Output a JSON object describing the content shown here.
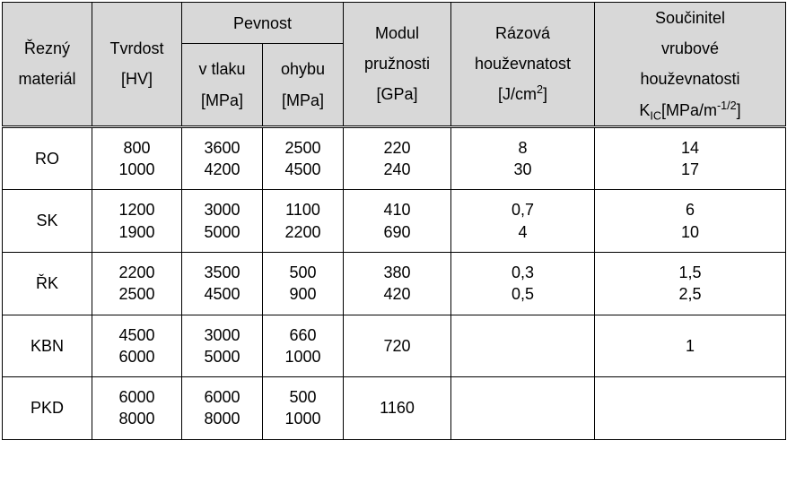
{
  "header": {
    "material": "Řezný materiál",
    "hardness": "Tvrdost [HV]",
    "pevnost": "Pevnost",
    "pevnost_tlak": "v tlaku [MPa]",
    "pevnost_ohyb": "ohybu [MPa]",
    "modul": "Modul pružnosti [GPa]",
    "raz_line1": "Rázová",
    "raz_line2": "houževnatost",
    "raz_unit_pre": "[J/cm",
    "raz_unit_sup": "2",
    "raz_unit_post": "]",
    "souc_line1": "Součinitel",
    "souc_line2": "vrubové",
    "souc_line3": "houževnatosti",
    "souc_k": "K",
    "souc_ic": "IC",
    "souc_unit_pre": "[MPa/m",
    "souc_unit_sup": "-1/2",
    "souc_unit_post": "]"
  },
  "rows": [
    {
      "mat": "RO",
      "hv1": "800",
      "hv2": "1000",
      "pt1": "3600",
      "pt2": "4200",
      "po1": "2500",
      "po2": "4500",
      "mod1": "220",
      "mod2": "240",
      "rz1": "8",
      "rz2": "30",
      "sc1": "14",
      "sc2": "17"
    },
    {
      "mat": "SK",
      "hv1": "1200",
      "hv2": "1900",
      "pt1": "3000",
      "pt2": "5000",
      "po1": "1100",
      "po2": "2200",
      "mod1": "410",
      "mod2": "690",
      "rz1": "0,7",
      "rz2": "4",
      "sc1": "6",
      "sc2": "10"
    },
    {
      "mat": "ŘK",
      "hv1": "2200",
      "hv2": "2500",
      "pt1": "3500",
      "pt2": "4500",
      "po1": "500",
      "po2": "900",
      "mod1": "380",
      "mod2": "420",
      "rz1": "0,3",
      "rz2": "0,5",
      "sc1": "1,5",
      "sc2": "2,5"
    },
    {
      "mat": "KBN",
      "hv1": "4500",
      "hv2": "6000",
      "pt1": "3000",
      "pt2": "5000",
      "po1": "660",
      "po2": "1000",
      "mod1": "720",
      "mod2": "",
      "rz1": "",
      "rz2": "",
      "sc1": "1",
      "sc2": ""
    },
    {
      "mat": "PKD",
      "hv1": "6000",
      "hv2": "8000",
      "pt1": "6000",
      "pt2": "8000",
      "po1": "500",
      "po2": "1000",
      "mod1": "1160",
      "mod2": "",
      "rz1": "",
      "rz2": "",
      "sc1": "",
      "sc2": ""
    }
  ],
  "style": {
    "header_bg": "#d8d8d8",
    "border_color": "#000000",
    "font_family": "Arial",
    "font_size_pt": 14
  }
}
